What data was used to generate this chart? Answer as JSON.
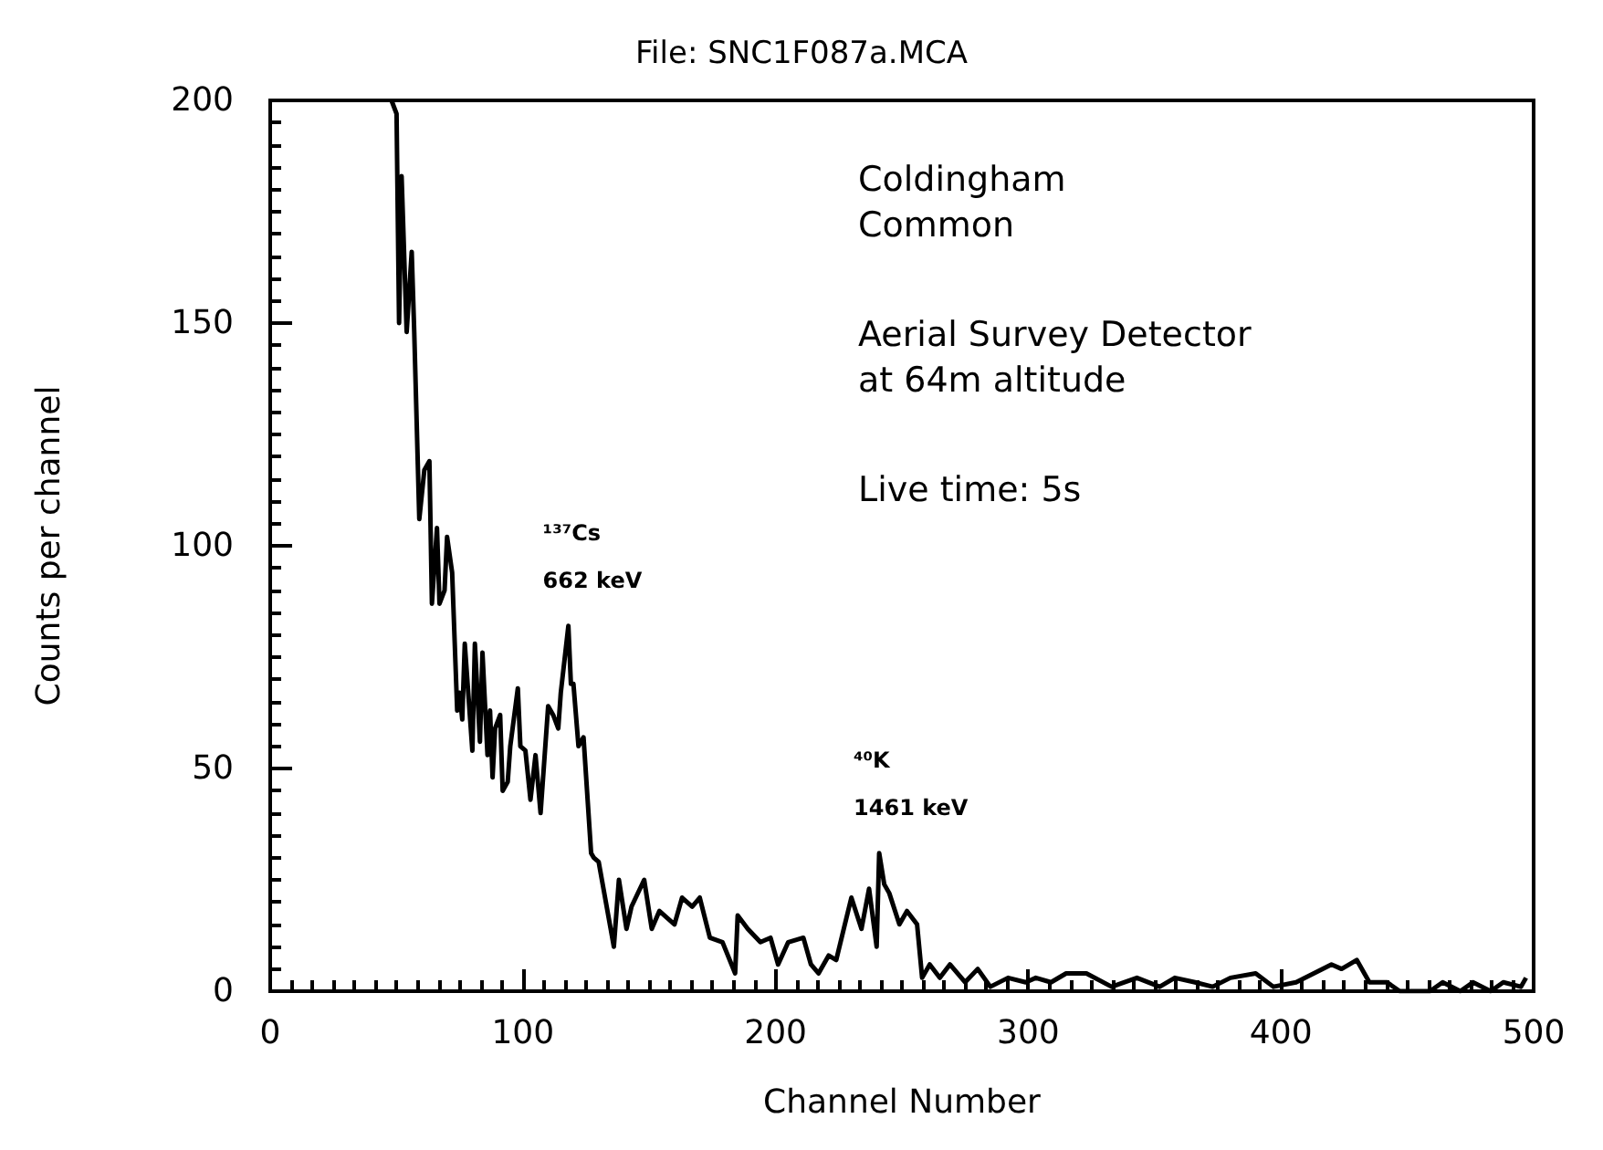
{
  "chart_data": {
    "type": "line",
    "title": "File: SNC1F087a.MCA",
    "xlabel": "Channel Number",
    "ylabel": "Counts per channel",
    "x": [
      48,
      50,
      51,
      52,
      54,
      56,
      57,
      59,
      61,
      63,
      64,
      66,
      67,
      69,
      70,
      72,
      74,
      75,
      76,
      77,
      79,
      80,
      81,
      83,
      84,
      86,
      87,
      88,
      89,
      91,
      92,
      94,
      95,
      98,
      99,
      101,
      103,
      105,
      107,
      110,
      112,
      114,
      115,
      118,
      119,
      120,
      122,
      124,
      127,
      128,
      130,
      136,
      138,
      141,
      143,
      148,
      151,
      154,
      160,
      163,
      167,
      170,
      174,
      179,
      184,
      185,
      189,
      194,
      198,
      201,
      205,
      211,
      214,
      217,
      221,
      224,
      227,
      230,
      234,
      237,
      240,
      241,
      243,
      245,
      249,
      252,
      256,
      258,
      261,
      265,
      269,
      275,
      280,
      285,
      292,
      299,
      303,
      309,
      315,
      323,
      333,
      343,
      352,
      358,
      366,
      373,
      380,
      390,
      397,
      406,
      413,
      420,
      424,
      430,
      435,
      442,
      447,
      459,
      464,
      471,
      476,
      483,
      488,
      495,
      497
    ],
    "values": [
      200,
      197,
      150,
      183,
      148,
      166,
      148,
      106,
      117,
      119,
      87,
      104,
      87,
      90,
      102,
      94,
      63,
      67,
      61,
      78,
      62,
      54,
      78,
      56,
      76,
      53,
      63,
      48,
      59,
      62,
      45,
      47,
      55,
      68,
      55,
      54,
      43,
      53,
      40,
      64,
      62,
      59,
      67,
      82,
      69,
      69,
      55,
      57,
      31,
      30,
      29,
      10,
      25,
      14,
      19,
      25,
      14,
      18,
      15,
      21,
      19,
      21,
      12,
      11,
      4,
      17,
      14,
      11,
      12,
      6,
      11,
      12,
      6,
      4,
      8,
      7,
      14,
      21,
      14,
      23,
      10,
      31,
      24,
      22,
      15,
      18,
      15,
      3,
      6,
      3,
      6,
      2,
      5,
      1,
      3,
      2,
      3,
      2,
      4,
      4,
      1,
      3,
      1,
      3,
      2,
      1,
      3,
      4,
      1,
      2,
      4,
      6,
      5,
      7,
      2,
      2,
      0,
      0,
      2,
      0,
      2,
      0,
      2,
      1,
      3
    ],
    "color": "#000000",
    "marker": "none",
    "line_style": "solid",
    "xlim": [
      0,
      500
    ],
    "xticks": [
      0,
      100,
      200,
      300,
      400,
      500
    ],
    "ylim": [
      0,
      200
    ],
    "yticks": [
      0,
      50,
      100,
      150,
      200
    ],
    "grid": false,
    "annotations": [
      "Coldingham\nCommon",
      "Aerial Survey Detector\nat 64m altitude",
      "Live time: 5s",
      {
        "text": "¹³⁷Cs\n662 keV",
        "x": 118,
        "y": 82
      },
      {
        "text": "⁴⁰K\n1461 keV",
        "x": 241,
        "y": 31
      }
    ]
  }
}
